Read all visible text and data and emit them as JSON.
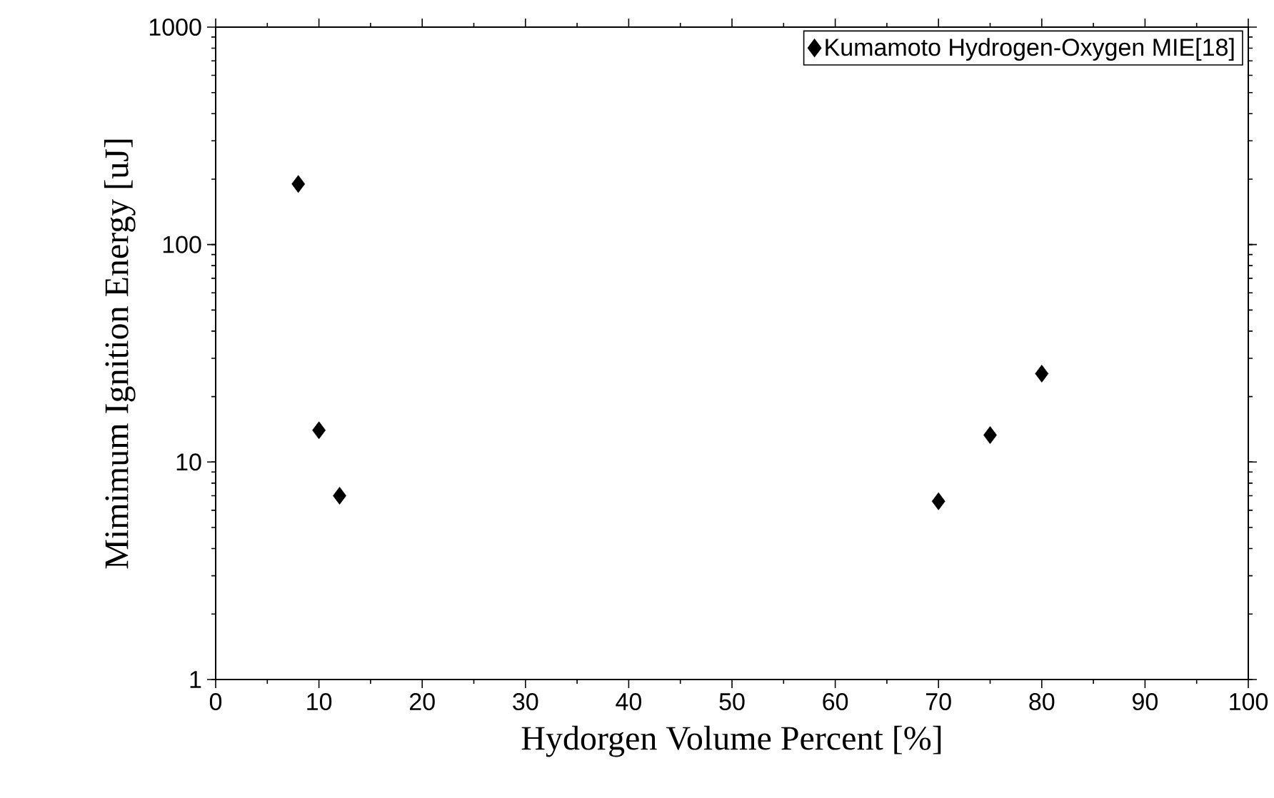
{
  "chart_data": {
    "type": "scatter",
    "xlabel": "Hydorgen Volume Percent [%]",
    "ylabel": "Mimimum Ignition Energy [uJ]",
    "x": [
      8,
      10,
      12,
      70,
      75,
      80
    ],
    "series": [
      {
        "name": "Kumamoto Hydrogen-Oxygen MIE[18]",
        "color": "#000000",
        "values": [
          190,
          14,
          7,
          6.6,
          13.3,
          25.5
        ]
      }
    ],
    "xlim": [
      0,
      100
    ],
    "xticks": [
      0,
      10,
      20,
      30,
      40,
      50,
      60,
      70,
      80,
      90,
      100
    ],
    "ylim": [
      1,
      1000
    ],
    "yticks": [
      1,
      10,
      100,
      1000
    ],
    "log": "y",
    "marker": "diamond",
    "legend": "top right",
    "grid": false
  }
}
